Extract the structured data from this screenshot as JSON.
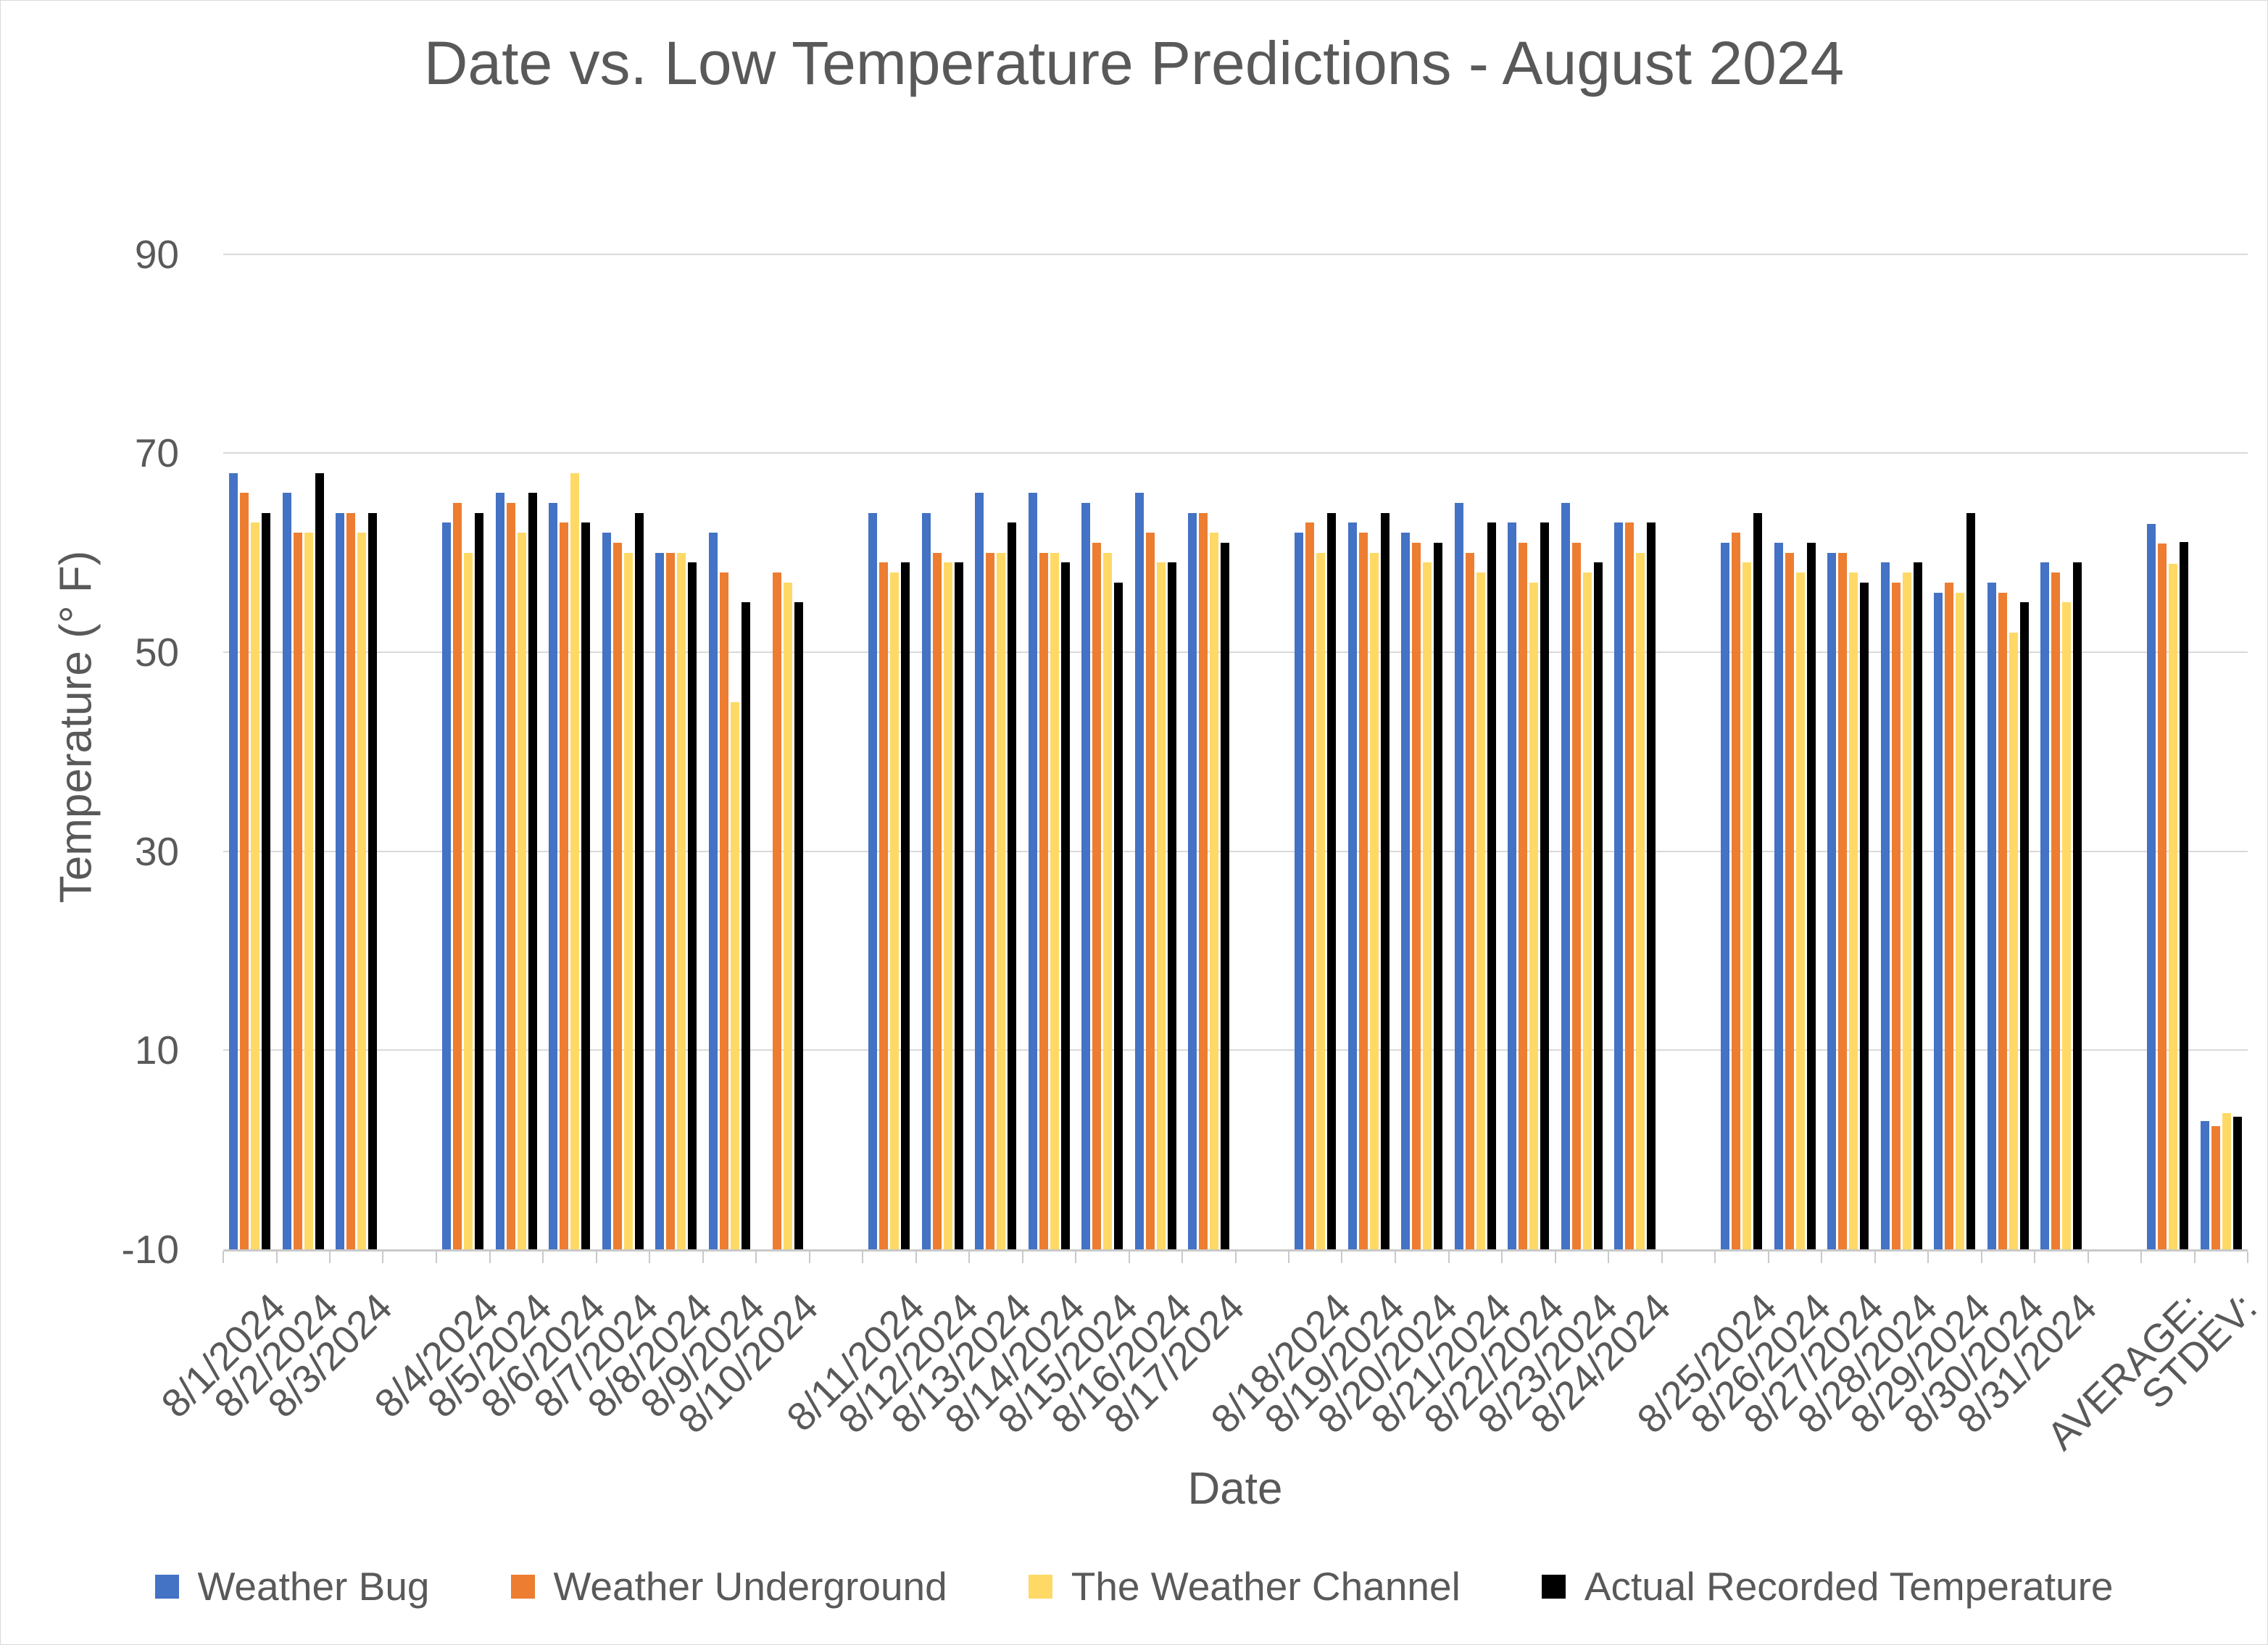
{
  "title": "Date vs. Low Temperature Predictions - August 2024",
  "chart_data": {
    "type": "bar",
    "title": "Date vs. Low Temperature Predictions - August 2024",
    "xlabel": "Date",
    "ylabel": "Temperature (° F)",
    "ylim": [
      -10,
      95
    ],
    "y_ticks": [
      90,
      70,
      50,
      30,
      10,
      -10
    ],
    "y_tick_labels": [
      "90",
      "70",
      "50",
      "30",
      "10",
      "-10"
    ],
    "grid": "horizontal",
    "legend_position": "bottom",
    "colors": {
      "gridline": "#d9d9d9",
      "axis": "#c9c9c9",
      "text": "#595959"
    },
    "categories": [
      "8/1/2024",
      "8/2/2024",
      "8/3/2024",
      "8/4/2024",
      "8/5/2024",
      "8/6/2024",
      "8/7/2024",
      "8/8/2024",
      "8/9/2024",
      "8/10/2024",
      "8/11/2024",
      "8/12/2024",
      "8/13/2024",
      "8/14/2024",
      "8/15/2024",
      "8/16/2024",
      "8/17/2024",
      "8/18/2024",
      "8/19/2024",
      "8/20/2024",
      "8/21/2024",
      "8/22/2024",
      "8/23/2024",
      "8/24/2024",
      "8/25/2024",
      "8/26/2024",
      "8/27/2024",
      "8/28/2024",
      "8/29/2024",
      "8/30/2024",
      "8/31/2024",
      "AVERAGE:",
      "STDEV:"
    ],
    "series": [
      {
        "name": "Weather Bug",
        "color": "#4472C4",
        "values": [
          68,
          66,
          64,
          63,
          66,
          65,
          62,
          60,
          62,
          null,
          64,
          64,
          66,
          66,
          65,
          66,
          64,
          62,
          63,
          62,
          65,
          63,
          65,
          63,
          61,
          61,
          60,
          59,
          56,
          57,
          59,
          62.9,
          2.9
        ]
      },
      {
        "name": "Weather Underground",
        "color": "#ED7D31",
        "values": [
          66,
          62,
          64,
          65,
          65,
          63,
          61,
          60,
          58,
          58,
          59,
          60,
          60,
          60,
          61,
          62,
          64,
          63,
          62,
          61,
          60,
          61,
          61,
          63,
          62,
          60,
          60,
          57,
          57,
          56,
          58,
          60.9,
          2.4
        ]
      },
      {
        "name": "The Weather Channel",
        "color": "#FFD966",
        "values": [
          63,
          62,
          62,
          60,
          62,
          68,
          60,
          60,
          45,
          57,
          58,
          59,
          60,
          60,
          60,
          59,
          62,
          60,
          60,
          59,
          58,
          57,
          58,
          60,
          59,
          58,
          58,
          58,
          56,
          52,
          55,
          58.9,
          3.7
        ]
      },
      {
        "name": "Actual Recorded Temperature",
        "color": "#000000",
        "values": [
          64,
          68,
          64,
          64,
          66,
          63,
          64,
          59,
          55,
          55,
          59,
          59,
          63,
          59,
          57,
          59,
          61,
          64,
          64,
          61,
          63,
          63,
          59,
          63,
          64,
          61,
          57,
          59,
          64,
          55,
          59,
          61.1,
          3.3
        ]
      }
    ],
    "column_order": [
      "8/1/2024",
      "8/2/2024",
      "8/3/2024",
      "",
      "8/4/2024",
      "8/5/2024",
      "8/6/2024",
      "8/7/2024",
      "8/8/2024",
      "8/9/2024",
      "8/10/2024",
      "",
      "8/11/2024",
      "8/12/2024",
      "8/13/2024",
      "8/14/2024",
      "8/15/2024",
      "8/16/2024",
      "8/17/2024",
      "",
      "8/18/2024",
      "8/19/2024",
      "8/20/2024",
      "8/21/2024",
      "8/22/2024",
      "8/23/2024",
      "8/24/2024",
      "",
      "8/25/2024",
      "8/26/2024",
      "8/27/2024",
      "8/28/2024",
      "8/29/2024",
      "8/30/2024",
      "8/31/2024",
      "",
      "AVERAGE:",
      "STDEV:"
    ],
    "notes": "Weather Bug has no bar on 8/10/2024"
  }
}
